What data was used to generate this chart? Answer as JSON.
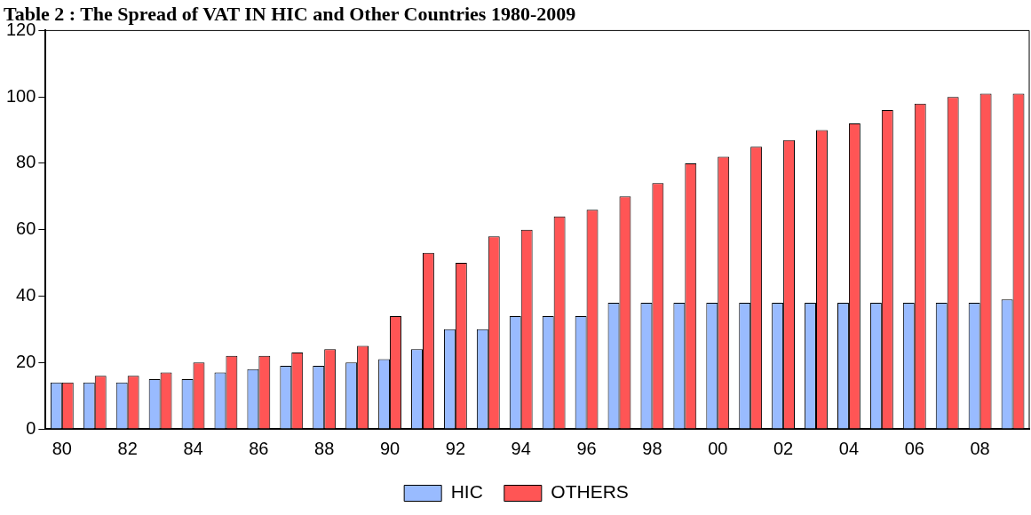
{
  "chart_data": {
    "type": "bar",
    "title": "Table 2 : The Spread of VAT IN HIC and Other Countries 1980-2009",
    "categories": [
      "80",
      null,
      "82",
      null,
      "84",
      null,
      "86",
      null,
      "88",
      null,
      "90",
      null,
      "92",
      null,
      "94",
      null,
      "96",
      null,
      "98",
      null,
      "00",
      null,
      "02",
      null,
      "04",
      null,
      "06",
      null,
      "08",
      null
    ],
    "series": [
      {
        "name": "HIC",
        "color": "#99bbff",
        "values": [
          14,
          14,
          14,
          15,
          15,
          17,
          18,
          19,
          19,
          20,
          21,
          24,
          30,
          30,
          34,
          34,
          34,
          38,
          38,
          38,
          38,
          38,
          38,
          38,
          38,
          38,
          38,
          38,
          38,
          39
        ]
      },
      {
        "name": "OTHERS",
        "color": "#ff5555",
        "values": [
          14,
          16,
          16,
          17,
          20,
          22,
          22,
          23,
          24,
          25,
          34,
          53,
          50,
          58,
          60,
          64,
          66,
          70,
          74,
          80,
          82,
          85,
          87,
          90,
          92,
          96,
          98,
          100,
          101,
          101
        ]
      }
    ],
    "ylim": [
      0,
      120
    ],
    "yticks": [
      0,
      20,
      40,
      60,
      80,
      100,
      120
    ],
    "grid": false,
    "legend": "bottom"
  }
}
